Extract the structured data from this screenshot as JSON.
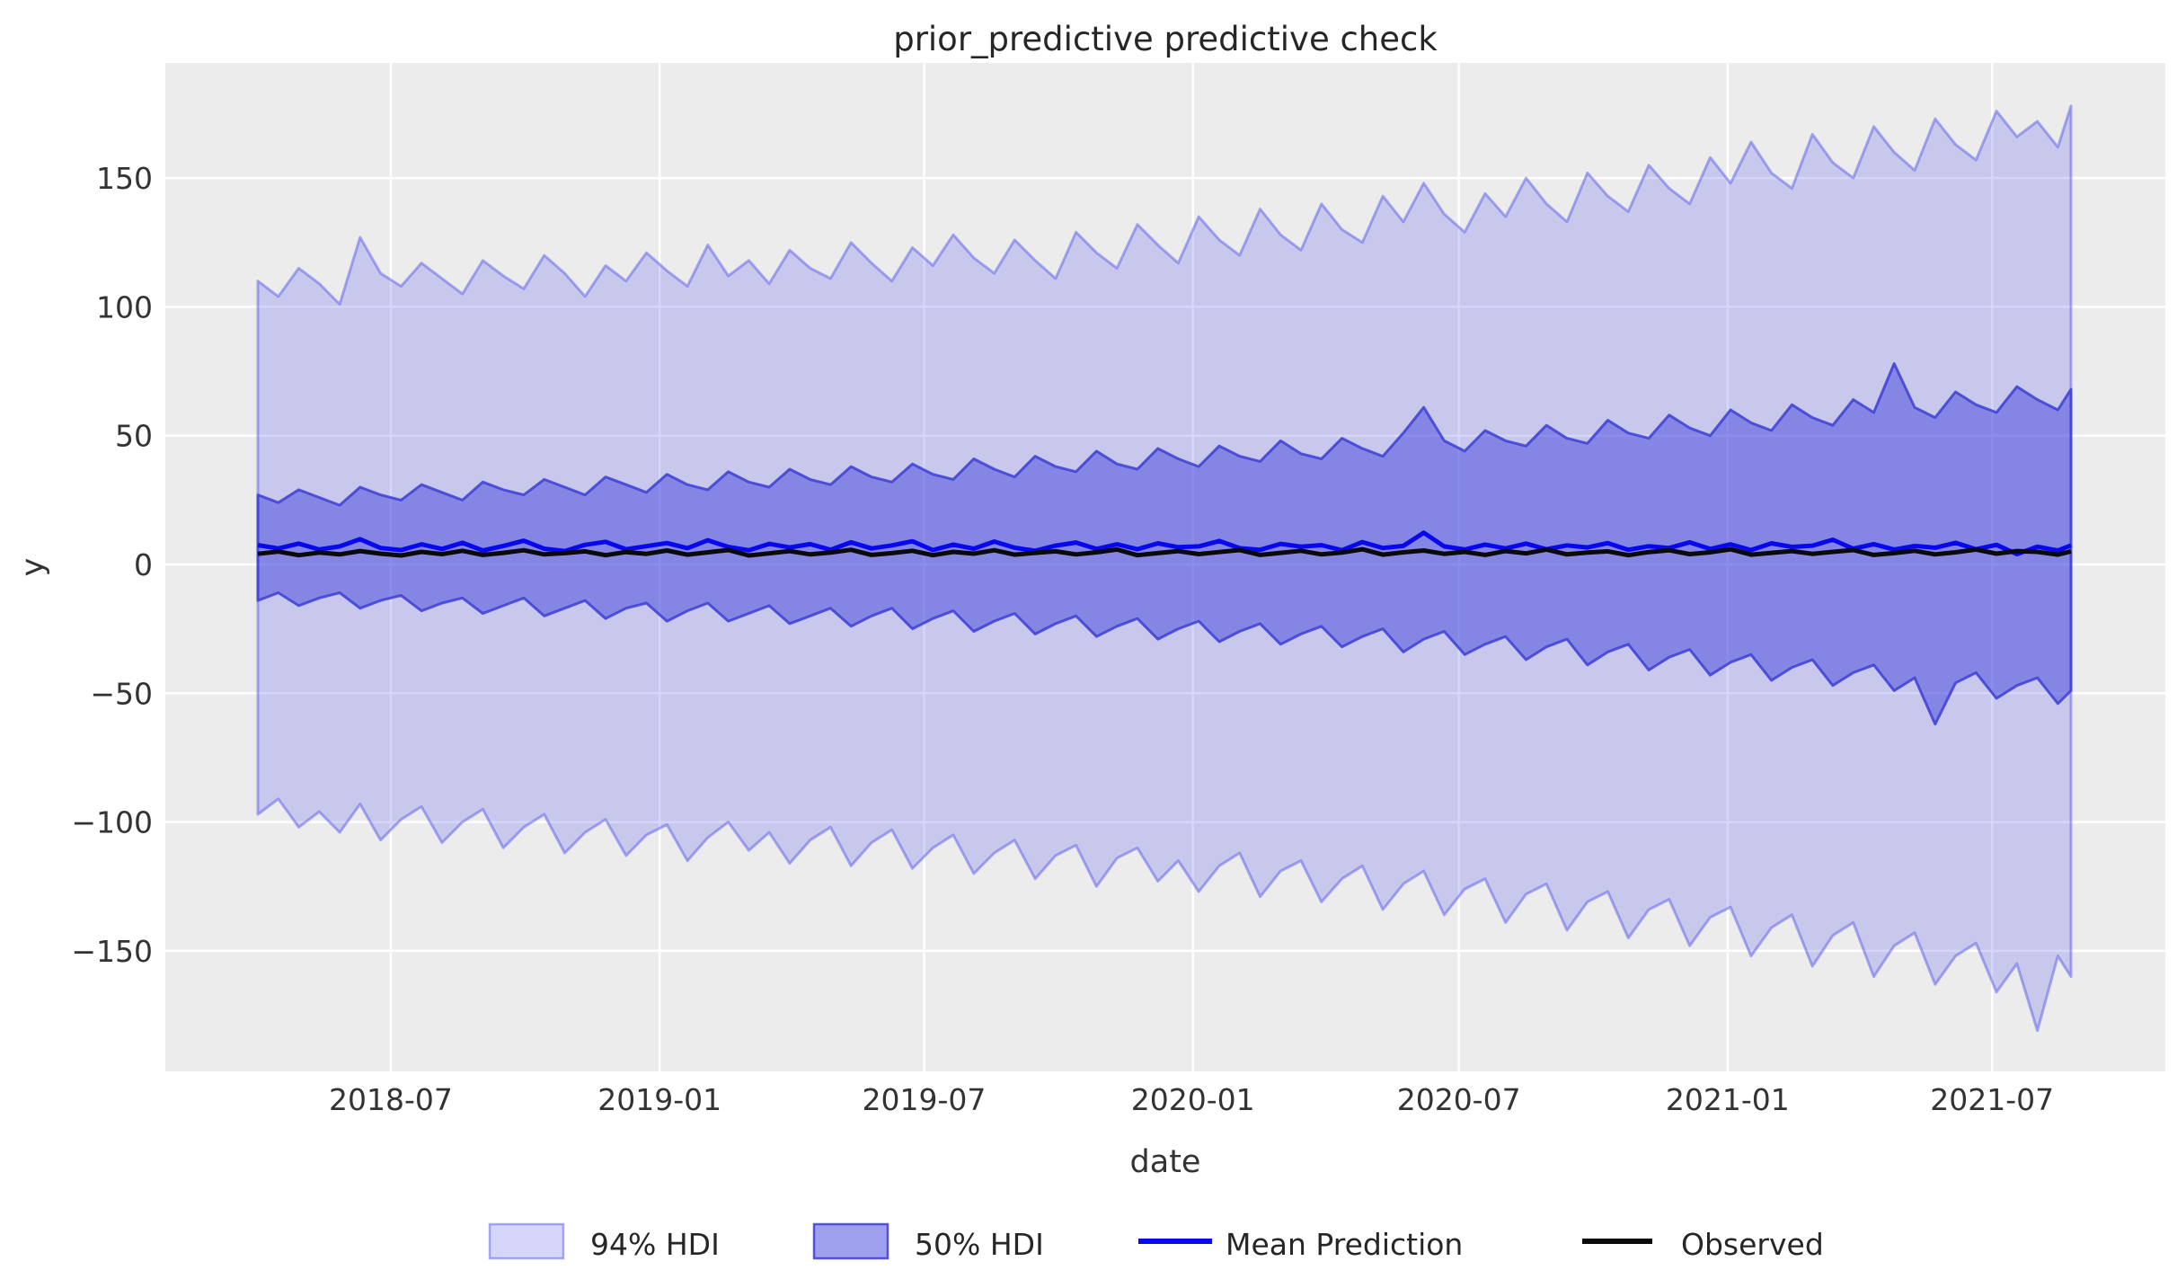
{
  "chart_data": {
    "type": "line",
    "title": "prior_predictive predictive check",
    "xlabel": "date",
    "ylabel": "y",
    "grid": true,
    "legend_position": "bottom-center",
    "x_start_date": "2018-04-01",
    "x_end_date": "2021-08-24",
    "x_total_days": 1241,
    "x_step_days": 14,
    "n_points": 90,
    "ylim": [
      -195,
      194
    ],
    "x_ticks": [
      {
        "label": "2018-07",
        "day": 91
      },
      {
        "label": "2019-01",
        "day": 275
      },
      {
        "label": "2019-07",
        "day": 456
      },
      {
        "label": "2020-01",
        "day": 640
      },
      {
        "label": "2020-07",
        "day": 822
      },
      {
        "label": "2021-01",
        "day": 1006
      },
      {
        "label": "2021-07",
        "day": 1187
      }
    ],
    "y_ticks": [
      {
        "label": "150",
        "value": 150
      },
      {
        "label": "100",
        "value": 100
      },
      {
        "label": "50",
        "value": 50
      },
      {
        "label": "0",
        "value": 0
      },
      {
        "label": "−50",
        "value": -50
      },
      {
        "label": "−100",
        "value": -100
      },
      {
        "label": "−150",
        "value": -150
      }
    ],
    "legend": [
      {
        "label": "94% HDI",
        "type": "patch"
      },
      {
        "label": "50% HDI",
        "type": "patch"
      },
      {
        "label": "Mean Prediction",
        "type": "line"
      },
      {
        "label": "Observed",
        "type": "line"
      }
    ],
    "colors": {
      "plot_bg": "#ececec",
      "grid": "#ffffff",
      "band94_fill": "rgba(90,92,238,0.25)",
      "band94_edge": "rgba(90,92,238,0.5)",
      "band50_fill": "rgba(70,73,220,0.52)",
      "band50_edge": "rgba(60,62,214,0.85)",
      "mean": "#0808ee",
      "observed": "#0a0a0a",
      "legend94_fill": "rgba(90,92,238,0.25)",
      "legend94_edge": "rgba(90,92,238,0.5)",
      "legend50_fill": "rgba(70,73,220,0.52)",
      "legend50_edge": "rgba(60,62,214,0.85)",
      "tick_text": "#333333",
      "title_text": "#262626"
    },
    "series": [
      {
        "name": "94% HDI",
        "type": "band",
        "upper": [
          110,
          104,
          115,
          109,
          101,
          127,
          113,
          108,
          117,
          111,
          105,
          118,
          112,
          107,
          120,
          113,
          104,
          116,
          110,
          121,
          114,
          108,
          124,
          112,
          118,
          109,
          122,
          115,
          111,
          125,
          117,
          110,
          123,
          116,
          128,
          119,
          113,
          126,
          118,
          111,
          129,
          121,
          115,
          132,
          124,
          117,
          135,
          126,
          120,
          138,
          128,
          122,
          140,
          130,
          125,
          143,
          133,
          148,
          136,
          129,
          144,
          135,
          150,
          140,
          133,
          152,
          143,
          137,
          155,
          146,
          140,
          158,
          148,
          164,
          152,
          146,
          167,
          156,
          150,
          170,
          160,
          153,
          173,
          163,
          157,
          176,
          166,
          172,
          162,
          178
        ],
        "lower": [
          -97,
          -91,
          -102,
          -96,
          -104,
          -93,
          -107,
          -99,
          -94,
          -108,
          -100,
          -95,
          -110,
          -102,
          -97,
          -112,
          -104,
          -99,
          -113,
          -105,
          -101,
          -115,
          -106,
          -100,
          -111,
          -104,
          -116,
          -107,
          -102,
          -117,
          -108,
          -103,
          -118,
          -110,
          -105,
          -120,
          -112,
          -107,
          -122,
          -113,
          -109,
          -125,
          -114,
          -110,
          -123,
          -115,
          -127,
          -117,
          -112,
          -129,
          -119,
          -115,
          -131,
          -122,
          -117,
          -134,
          -124,
          -119,
          -136,
          -126,
          -122,
          -139,
          -128,
          -124,
          -142,
          -131,
          -127,
          -145,
          -134,
          -130,
          -148,
          -137,
          -133,
          -152,
          -141,
          -136,
          -156,
          -144,
          -139,
          -160,
          -148,
          -143,
          -163,
          -152,
          -147,
          -166,
          -155,
          -181,
          -152,
          -160
        ]
      },
      {
        "name": "50% HDI",
        "type": "band",
        "upper": [
          27,
          24,
          29,
          26,
          23,
          30,
          27,
          25,
          31,
          28,
          25,
          32,
          29,
          27,
          33,
          30,
          27,
          34,
          31,
          28,
          35,
          31,
          29,
          36,
          32,
          30,
          37,
          33,
          31,
          38,
          34,
          32,
          39,
          35,
          33,
          41,
          37,
          34,
          42,
          38,
          36,
          44,
          39,
          37,
          45,
          41,
          38,
          46,
          42,
          40,
          48,
          43,
          41,
          49,
          45,
          42,
          51,
          61,
          48,
          44,
          52,
          48,
          46,
          54,
          49,
          47,
          56,
          51,
          49,
          58,
          53,
          50,
          60,
          55,
          52,
          62,
          57,
          54,
          64,
          59,
          78,
          61,
          57,
          67,
          62,
          59,
          69,
          64,
          60,
          68
        ],
        "lower": [
          -14,
          -11,
          -16,
          -13,
          -11,
          -17,
          -14,
          -12,
          -18,
          -15,
          -13,
          -19,
          -16,
          -13,
          -20,
          -17,
          -14,
          -21,
          -17,
          -15,
          -22,
          -18,
          -15,
          -22,
          -19,
          -16,
          -23,
          -20,
          -17,
          -24,
          -20,
          -17,
          -25,
          -21,
          -18,
          -26,
          -22,
          -19,
          -27,
          -23,
          -20,
          -28,
          -24,
          -21,
          -29,
          -25,
          -22,
          -30,
          -26,
          -23,
          -31,
          -27,
          -24,
          -32,
          -28,
          -25,
          -34,
          -29,
          -26,
          -35,
          -31,
          -28,
          -37,
          -32,
          -29,
          -39,
          -34,
          -31,
          -41,
          -36,
          -33,
          -43,
          -38,
          -35,
          -45,
          -40,
          -37,
          -47,
          -42,
          -39,
          -49,
          -44,
          -62,
          -46,
          -42,
          -52,
          -47,
          -44,
          -54,
          -49
        ]
      },
      {
        "name": "Mean Prediction",
        "type": "line",
        "values": [
          7.5,
          6.2,
          8.1,
          5.8,
          7.0,
          9.8,
          6.4,
          5.6,
          7.8,
          6.0,
          8.4,
          5.4,
          7.2,
          9.2,
          6.1,
          5.2,
          7.6,
          8.8,
          5.9,
          7.1,
          8.3,
          6.3,
          9.4,
          6.8,
          5.5,
          8.0,
          6.6,
          7.9,
          5.7,
          8.6,
          6.2,
          7.4,
          9.0,
          5.6,
          7.7,
          6.1,
          8.9,
          6.5,
          5.3,
          7.3,
          8.5,
          6.0,
          7.8,
          5.9,
          8.2,
          6.7,
          7.0,
          9.1,
          6.3,
          5.7,
          8.0,
          6.9,
          7.5,
          5.5,
          8.7,
          6.4,
          7.2,
          12.3,
          7.0,
          5.8,
          7.7,
          6.2,
          8.1,
          5.9,
          7.4,
          6.6,
          8.3,
          5.7,
          7.1,
          6.4,
          8.6,
          6.0,
          7.8,
          5.6,
          8.2,
          6.8,
          7.3,
          9.6,
          6.1,
          7.9,
          5.8,
          7.2,
          6.5,
          8.4,
          5.9,
          7.6,
          4.0,
          6.9,
          5.4,
          7.4
        ]
      },
      {
        "name": "Observed",
        "type": "line",
        "values": [
          4.1,
          5.0,
          3.6,
          4.6,
          3.9,
          5.2,
          4.2,
          3.5,
          4.9,
          4.0,
          5.3,
          3.7,
          4.5,
          5.5,
          3.9,
          4.4,
          5.1,
          3.6,
          4.8,
          4.1,
          5.4,
          3.8,
          4.7,
          5.6,
          3.5,
          4.3,
          5.2,
          3.9,
          4.6,
          5.7,
          3.7,
          4.4,
          5.3,
          3.6,
          4.9,
          4.2,
          5.5,
          3.8,
          4.5,
          5.1,
          3.9,
          4.7,
          5.8,
          3.6,
          4.4,
          5.2,
          4.0,
          4.8,
          5.6,
          3.7,
          4.5,
          5.3,
          3.9,
          4.6,
          5.9,
          3.8,
          4.7,
          5.4,
          4.1,
          4.9,
          3.7,
          5.2,
          4.3,
          5.8,
          3.9,
          4.6,
          5.1,
          3.6,
          4.8,
          5.5,
          4.0,
          4.7,
          5.9,
          3.8,
          4.5,
          5.2,
          4.1,
          4.9,
          5.6,
          3.7,
          4.4,
          5.3,
          3.9,
          4.7,
          5.8,
          4.2,
          5.2,
          4.9,
          3.8,
          5.1
        ]
      }
    ]
  }
}
